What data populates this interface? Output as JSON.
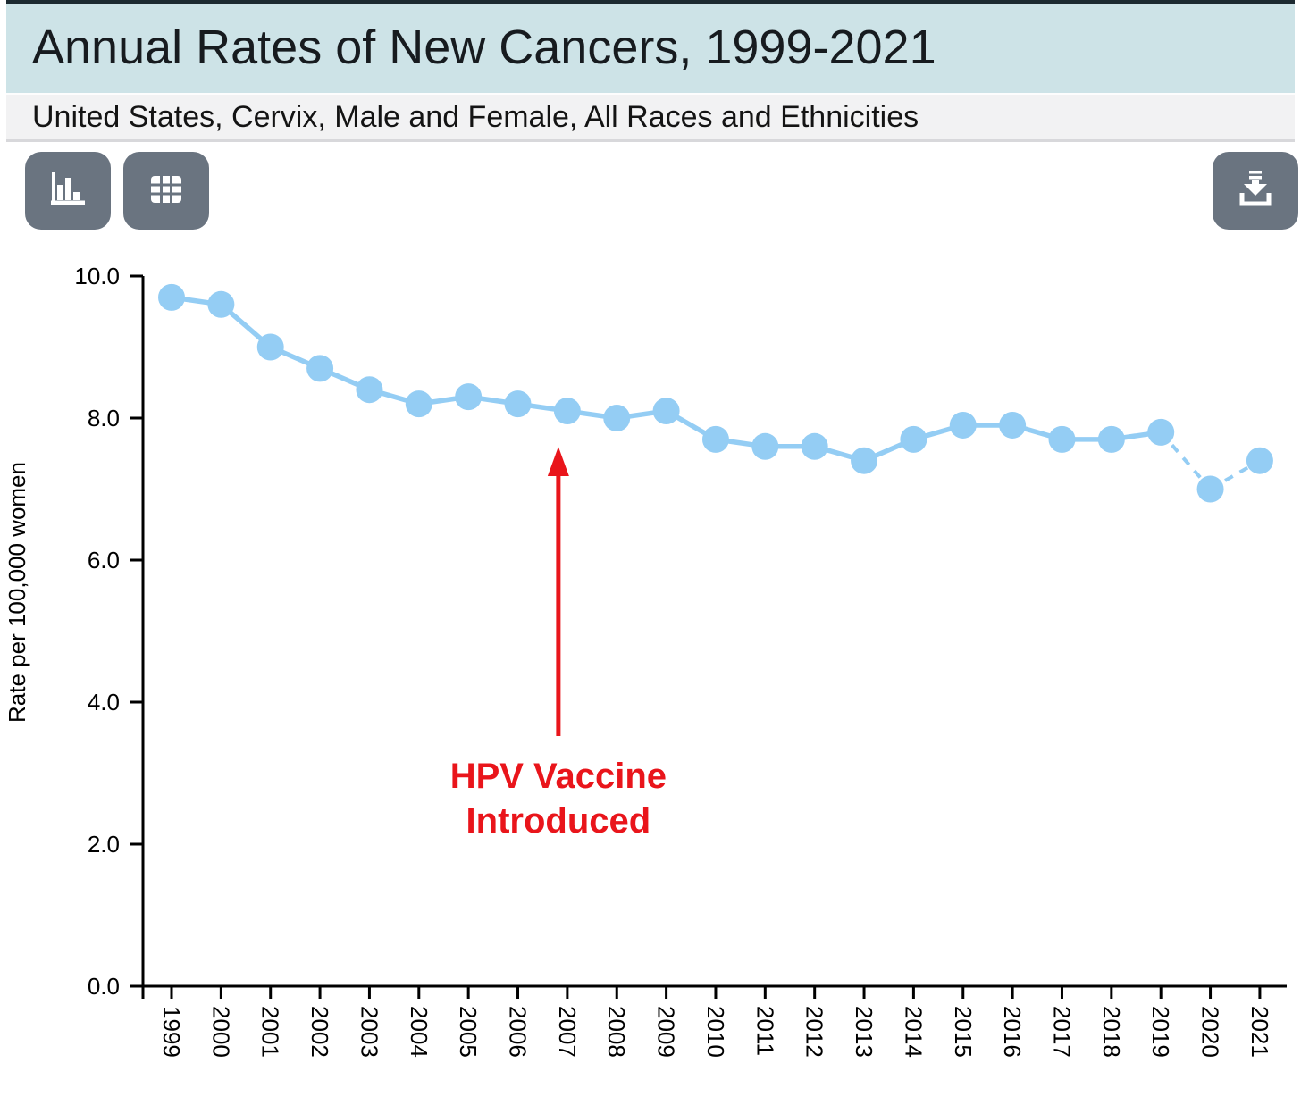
{
  "header": {
    "title": "Annual Rates of New Cancers, 1999-2021",
    "subtitle": "United States, Cervix, Male and Female, All Races and Ethnicities"
  },
  "toolbar": {
    "chart_view_label": "Chart view",
    "table_view_label": "Table view",
    "download_label": "Download",
    "button_color": "#6a7480",
    "icon_color": "#ffffff"
  },
  "chart_data": {
    "type": "line",
    "title": "Annual Rates of New Cancers, 1999-2021",
    "x": [
      1999,
      2000,
      2001,
      2002,
      2003,
      2004,
      2005,
      2006,
      2007,
      2008,
      2009,
      2010,
      2011,
      2012,
      2013,
      2014,
      2015,
      2016,
      2017,
      2018,
      2019,
      2020,
      2021
    ],
    "series": [
      {
        "name": "Rate per 100,000 women",
        "values": [
          9.7,
          9.6,
          9.0,
          8.7,
          8.4,
          8.2,
          8.3,
          8.2,
          8.1,
          8.0,
          8.1,
          7.7,
          7.6,
          7.6,
          7.4,
          7.7,
          7.9,
          7.9,
          7.7,
          7.7,
          7.8,
          7.0,
          7.4
        ]
      }
    ],
    "dashed_segments": [
      [
        2019,
        2020
      ],
      [
        2020,
        2021
      ]
    ],
    "xlabel": "",
    "ylabel": "Rate per 100,000 women",
    "ylim": [
      0,
      10
    ],
    "yticks": [
      0,
      2,
      4,
      6,
      8,
      10
    ],
    "ytick_labels": [
      "0.0",
      "2.0",
      "4.0",
      "6.0",
      "8.0",
      "10.0"
    ],
    "grid": false,
    "legend": "none",
    "annotation": {
      "line1": "HPV Vaccine",
      "line2": "Introduced",
      "arrow_points_to_year": 2007,
      "color": "#e9151b"
    },
    "colors": {
      "series": "#94cdf4",
      "axis": "#000000",
      "tick_text": "#000000"
    }
  }
}
